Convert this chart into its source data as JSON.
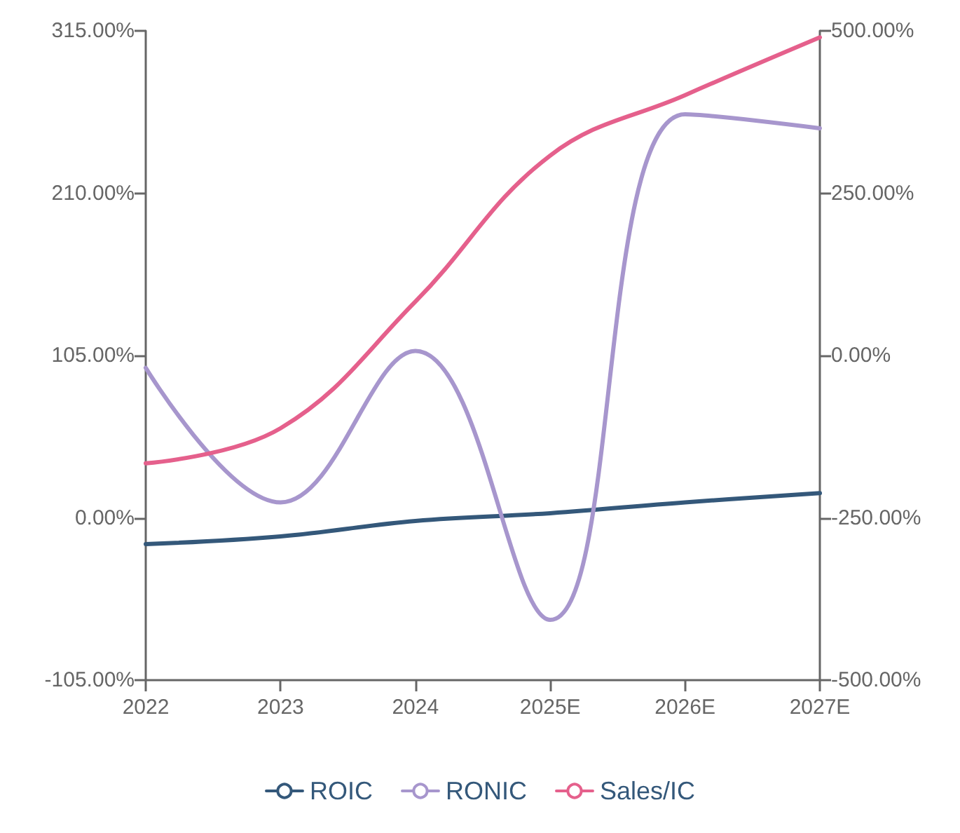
{
  "chart_data": {
    "type": "line",
    "categories": [
      "2022",
      "2023",
      "2024",
      "2025E",
      "2026E",
      "2027E"
    ],
    "series": [
      {
        "name": "ROIC",
        "color": "#34587a",
        "values": [
          -17,
          -12,
          -2,
          3,
          10,
          16
        ]
      },
      {
        "name": "RONIC",
        "color": "#a796cd",
        "values": [
          97,
          10,
          108,
          -66,
          261,
          252
        ]
      },
      {
        "name": "Sales/IC",
        "color": "#e5608c",
        "axis": "y2",
        "values": [
          -166,
          -112,
          83,
          308,
          401,
          490
        ]
      }
    ],
    "ylim": [
      -105,
      315
    ],
    "yticks": [
      {
        "value": -105,
        "label": "-105.00%"
      },
      {
        "value": 0,
        "label": "0.00%"
      },
      {
        "value": 105,
        "label": "105.00%"
      },
      {
        "value": 210,
        "label": "210.00%"
      },
      {
        "value": 315,
        "label": "315.00%"
      }
    ],
    "y2lim": [
      -500,
      500
    ],
    "y2ticks": [
      {
        "value": -500,
        "label": "-500.00%"
      },
      {
        "value": -250,
        "label": "-250.00%"
      },
      {
        "value": 0,
        "label": "0.00%"
      },
      {
        "value": 250,
        "label": "250.00%"
      },
      {
        "value": 500,
        "label": "500.00%"
      }
    ],
    "legend": "bottom",
    "marker": "none",
    "line_style": "solid",
    "grid": false
  }
}
